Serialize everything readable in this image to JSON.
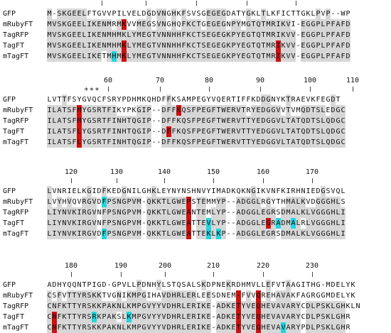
{
  "labels": [
    "GFP",
    "mRubyFT",
    "TagRFP",
    "TagFT",
    "mTagFT"
  ],
  "colors": {
    "conserved": "#d7d7d7",
    "red_highlight": "#cc1111",
    "cyan_highlight": "#22d6e0"
  },
  "blocks": [
    {
      "numbers": [
        "10",
        "20",
        "30",
        "40",
        "50"
      ],
      "annotation": "",
      "seqs": [
        "M-SKGEELFTGVVPILVELDGDVNGHKFSVSGEGEGDATYGKLTLKFICTTGKLPVP--WP",
        "MVSKGEELIKENMRMKVVMEGSVNGHQFKCTGEGEGNPYMGTQTMRIKVI-EGGPLPFAFD",
        "MVSKGEELIKENMHMKLYMEGTVNNHHFKCTSEGEGKPYEGTQTMRIKVV-EGGPLPFAFD",
        "MVSKGEELIKENMHMKLYMEGTVNNHHFKCTSEGEGKPYEGTQTMRIKVV-EGGPLPFAFD",
        "MVSKGEELIKETMHMKLYMEGTVNNHHFKCTSEGEGKPYEGTQTMRIKVV-EGGPLPFAFD"
      ]
    },
    {
      "numbers": [
        "60",
        "70",
        "80",
        "90",
        "100",
        "110"
      ],
      "annotation": "***",
      "seqs": [
        "LVTTFSYGVQCFSRYPDHMKQHDFFKSAMPEGYVQERTIFFKDDGNYKTRAEVKFEGDT",
        "ILATSFMYGSRTFIKYPKGIP--DFFKQSFPEGFTWERVTRYEDGGVVTVMQDTSLEDGC",
        "ILATSFMYGSRTFINHTQGIP--DFFKQSFPEGFTWERVTTYEDGGVLTATQDTSLQDGC",
        "ILATSFLYGSRTFINHTQGIP--DFFKQSFPEGFTWERVTTYEDGGVLTATQDTSLQDGC",
        "ILATSFLYGSRTFINHTQGIP--DFFKQSFPEGFTWERVTTYEDGGVLTATQDTSLQDGC"
      ]
    },
    {
      "numbers": [
        "120",
        "130",
        "140",
        "150",
        "160",
        "170"
      ],
      "annotation": "",
      "seqs": [
        "LVNRIELKGIDFKEDGNILGHKLEYNYNSHNVYIMADKQKNGIKVNFKIRHNIEDGSVQL",
        "LVYHVQVRGVDFPSNGPVM-QKKTLGWEPSTEMMYP--ADGGLRGYTHMALKVDGGGHLS",
        "LIYNVKIRGVNFPSNGPVM-QKKTLGWEANTEMLYP--ADGGLEGRSDMALKLVGGGHLI",
        "LIYNVKIRGVNFPSNGPVM-QKKTLGWEATTEVLYP--ADGGLEGRADMALRLVGGGHLI",
        "LIYNVKIRGVDFPSNGPVM-QKKTLGWEATTEKLKP--ADGGLEGRSDMALKLVGGGHLI"
      ]
    },
    {
      "numbers": [
        "180",
        "190",
        "200",
        "210",
        "220",
        "230"
      ],
      "annotation": "",
      "seqs": [
        "ADHYQQNTPIGD-GPVLLPDNHYLSTQSALSKDPNEKRDHMVLLEFVTAAGITHG-MDELYK",
        "CSFVTTYRSKKTVGNIKMPGIHAVDHRLERLEESDNEM-FVVQREHAVAKFAGRGGMDELYK",
        "CNFKTTYRSKKPAKNLKMPGVYYVDHRLERIKE-ADKETYVEQHEVAVARYCDLPSKLGHKLN",
        "CNFKTTYRSRKPAKSLKMPGVYYVDHRLERIKE-ADKETYVEQHEVAVARYCDLPSKLGHR",
        "CNFKTTYRSKKPAKNLKMPGVYYVDHRLERIKE-ADKETYVEQHEVAVARYPDLPSKLGHR"
      ]
    }
  ]
}
